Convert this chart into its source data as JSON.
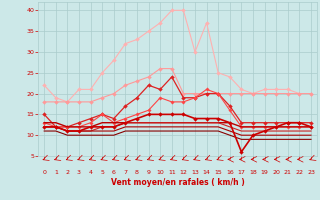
{
  "x": [
    0,
    1,
    2,
    3,
    4,
    5,
    6,
    7,
    8,
    9,
    10,
    11,
    12,
    13,
    14,
    15,
    16,
    17,
    18,
    19,
    20,
    21,
    22,
    23
  ],
  "series": [
    {
      "color": "#FFB0B0",
      "lw": 0.8,
      "marker": "D",
      "ms": 2.0,
      "values": [
        22,
        19,
        18,
        21,
        21,
        25,
        28,
        32,
        33,
        35,
        37,
        40,
        40,
        30,
        37,
        25,
        24,
        21,
        20,
        21,
        21,
        21,
        20,
        20
      ]
    },
    {
      "color": "#FF9999",
      "lw": 0.8,
      "marker": "D",
      "ms": 2.0,
      "values": [
        18,
        18,
        18,
        18,
        18,
        19,
        20,
        22,
        23,
        24,
        26,
        26,
        20,
        20,
        20,
        20,
        20,
        20,
        20,
        20,
        20,
        20,
        20,
        20
      ]
    },
    {
      "color": "#DD2222",
      "lw": 0.9,
      "marker": "D",
      "ms": 2.0,
      "values": [
        15,
        12,
        12,
        13,
        14,
        15,
        14,
        17,
        19,
        22,
        21,
        24,
        19,
        19,
        20,
        20,
        17,
        13,
        13,
        13,
        13,
        13,
        13,
        13
      ]
    },
    {
      "color": "#FF4444",
      "lw": 0.8,
      "marker": "D",
      "ms": 1.8,
      "values": [
        13,
        12,
        12,
        12,
        13,
        15,
        13,
        14,
        15,
        16,
        19,
        18,
        18,
        19,
        21,
        20,
        16,
        12,
        12,
        12,
        12,
        12,
        12,
        12
      ]
    },
    {
      "color": "#BB0000",
      "lw": 1.0,
      "marker": null,
      "ms": 0,
      "values": [
        13,
        13,
        12,
        12,
        12,
        13,
        13,
        13,
        13,
        13,
        13,
        13,
        13,
        13,
        13,
        13,
        13,
        12,
        12,
        12,
        12,
        12,
        12,
        12
      ]
    },
    {
      "color": "#CC2222",
      "lw": 0.8,
      "marker": null,
      "ms": 0,
      "values": [
        12,
        12,
        11,
        11,
        11,
        12,
        12,
        13,
        13,
        13,
        13,
        13,
        13,
        13,
        13,
        13,
        12,
        11,
        11,
        11,
        11,
        11,
        11,
        11
      ]
    },
    {
      "color": "#AA0000",
      "lw": 0.8,
      "marker": null,
      "ms": 0,
      "values": [
        12,
        12,
        11,
        11,
        11,
        11,
        11,
        12,
        12,
        12,
        12,
        12,
        12,
        12,
        12,
        12,
        11,
        10,
        10,
        10,
        10,
        10,
        10,
        10
      ]
    },
    {
      "color": "#880000",
      "lw": 0.8,
      "marker": null,
      "ms": 0,
      "values": [
        11,
        11,
        10,
        10,
        10,
        10,
        10,
        11,
        11,
        11,
        11,
        11,
        11,
        11,
        11,
        11,
        10,
        9,
        9,
        9,
        9,
        9,
        9,
        9
      ]
    },
    {
      "color": "#CC0000",
      "lw": 1.2,
      "marker": "D",
      "ms": 2.0,
      "values": [
        12,
        12,
        11,
        11,
        12,
        12,
        12,
        13,
        14,
        15,
        15,
        15,
        15,
        14,
        14,
        14,
        13,
        6,
        10,
        11,
        12,
        13,
        13,
        12
      ]
    }
  ],
  "ylim": [
    5,
    42
  ],
  "yticks": [
    5,
    10,
    15,
    20,
    25,
    30,
    35,
    40
  ],
  "xlabel": "Vent moyen/en rafales ( km/h )",
  "bg_color": "#cce8e8",
  "grid_color": "#aacccc",
  "xlabel_color": "#CC0000",
  "tick_color": "#CC0000",
  "wind_arrow_color": "#CC0000",
  "arrow_angles": [
    225,
    225,
    225,
    225,
    225,
    225,
    225,
    225,
    225,
    225,
    225,
    225,
    225,
    225,
    225,
    225,
    270,
    270,
    270,
    270,
    270,
    270,
    270,
    225
  ]
}
